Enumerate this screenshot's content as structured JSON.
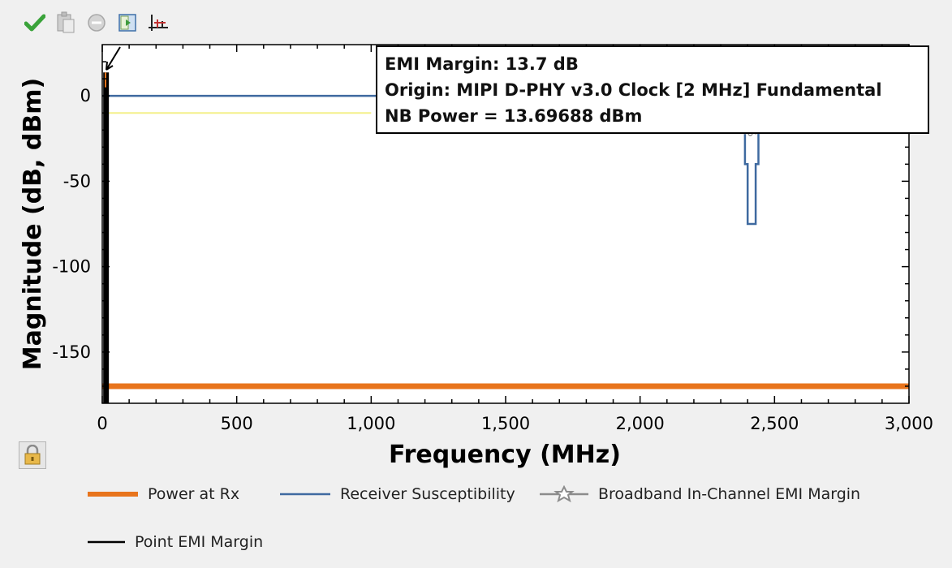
{
  "toolbar": {
    "buttons": [
      {
        "name": "apply-check-icon",
        "label": "Apply"
      },
      {
        "name": "clipboard-icon",
        "label": "Copy"
      },
      {
        "name": "minus-circle-icon",
        "label": "Remove"
      },
      {
        "name": "export-icon",
        "label": "Export"
      },
      {
        "name": "axis-settings-icon",
        "label": "Axis settings"
      }
    ]
  },
  "colors": {
    "power_at_rx": "#e8741c",
    "receiver_susceptibility": "#3f6aa0",
    "broadband_margin": "#8c8c8c",
    "point_emi_margin": "#000000",
    "yellow_line": "#f4f08a"
  },
  "tooltip": {
    "line1": "EMI Margin: 13.7 dB",
    "line2": "Origin: MIPI D-PHY v3.0 Clock [2 MHz] Fundamental",
    "line3": "NB Power = 13.69688 dBm"
  },
  "chart_data": {
    "type": "line",
    "xlabel": "Frequency (MHz)",
    "ylabel": "Magnitude (dB, dBm)",
    "xlim": [
      0,
      3000
    ],
    "ylim": [
      -180,
      30
    ],
    "xticks": [
      0,
      500,
      1000,
      1500,
      2000,
      2500,
      3000
    ],
    "xtick_labels": [
      "0",
      "500",
      "1,000",
      "1,500",
      "2,000",
      "2,500",
      "3,000"
    ],
    "yticks": [
      0,
      -50,
      -100,
      -150
    ],
    "ytick_labels": [
      "0",
      "-50",
      "-100",
      "-150"
    ],
    "grid": false,
    "legend_position": "bottom",
    "series": [
      {
        "name": "Power at Rx",
        "x": [
          0,
          3000
        ],
        "y": [
          -170,
          -170
        ]
      },
      {
        "name": "Receiver Susceptibility",
        "x": [
          0,
          1000,
          2370,
          2370,
          2390,
          2390,
          2400,
          2400,
          2430,
          2430,
          2440,
          2440,
          2460,
          2460,
          2470,
          2470
        ],
        "y": [
          0,
          0,
          0,
          -20,
          -20,
          -40,
          -40,
          -75,
          -75,
          -40,
          -40,
          -20,
          -20,
          0,
          0,
          0
        ]
      },
      {
        "name": "Broadband In-Channel EMI Margin",
        "x": [
          2370,
          2390,
          2400,
          2410,
          2420,
          2430,
          2440,
          2460
        ],
        "y": [
          -20,
          -21,
          -19,
          -22,
          -19,
          -21,
          -20,
          -20
        ]
      },
      {
        "name": "Point EMI Margin",
        "x": [
          2,
          2
        ],
        "y": [
          -180,
          13.7
        ]
      },
      {
        "name": "",
        "x": [
          0,
          1000
        ],
        "y": [
          -10,
          -10
        ]
      }
    ]
  }
}
